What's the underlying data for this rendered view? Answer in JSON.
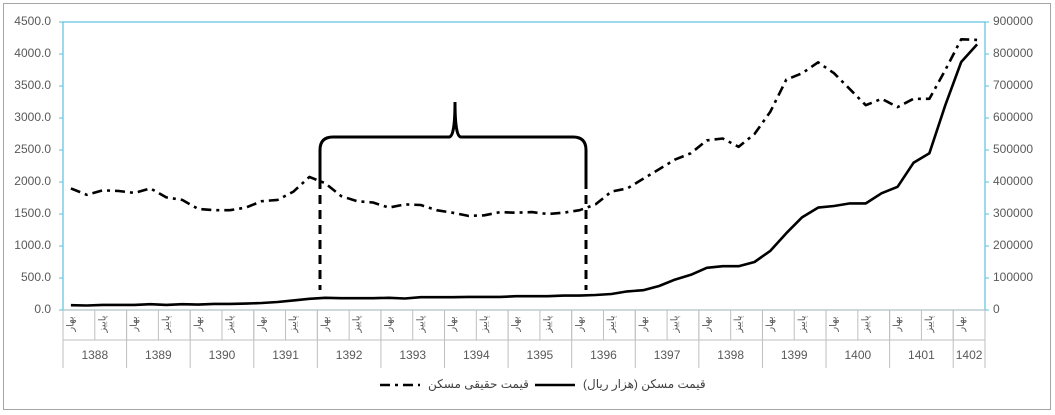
{
  "chart_data": {
    "type": "line",
    "categories": [
      "بهار",
      null,
      "پاییز",
      null,
      "بهار",
      null,
      "پاییز",
      null,
      "بهار",
      null,
      "پاییز",
      null,
      "بهار",
      null,
      "پاییز",
      null,
      "بهار",
      null,
      "پاییز",
      null,
      "بهار",
      null,
      "پاییز",
      null,
      "بهار",
      null,
      "پاییز",
      null,
      "بهار",
      null,
      "پاییز",
      null,
      "بهار",
      null,
      "پاییز",
      null,
      "بهار",
      null,
      "پاییز",
      null,
      "بهار",
      null,
      "پاییز",
      null,
      "بهار",
      null,
      "پاییز",
      null,
      "بهار",
      null,
      "پاییز",
      null,
      "بهار",
      null,
      "پاییز",
      null,
      "بهار",
      null
    ],
    "years": [
      "1388",
      "1389",
      "1390",
      "1391",
      "1392",
      "1393",
      "1394",
      "1395",
      "1396",
      "1397",
      "1398",
      "1399",
      "1400",
      "1401",
      "1402"
    ],
    "series": [
      {
        "name": "قیمت حقیقی مسکن",
        "color": "#000000",
        "dash": true,
        "axis": "y",
        "values": [
          1900,
          1800,
          1870,
          1860,
          1830,
          1900,
          1760,
          1720,
          1580,
          1560,
          1560,
          1600,
          1700,
          1720,
          1850,
          2080,
          1980,
          1780,
          1700,
          1680,
          1600,
          1650,
          1640,
          1560,
          1520,
          1470,
          1480,
          1530,
          1520,
          1530,
          1500,
          1520,
          1560,
          1650,
          1850,
          1900,
          2050,
          2200,
          2350,
          2450,
          2650,
          2680,
          2550,
          2750,
          3100,
          3600,
          3700,
          3870,
          3700,
          3450,
          3200,
          3300,
          3170,
          3300,
          3300,
          3750,
          4230,
          4220
        ]
      },
      {
        "name": "قیمت مسکن (هزار ریال)",
        "color": "#000000",
        "dash": false,
        "axis": "y2",
        "values": [
          15000,
          14000,
          16000,
          16000,
          16000,
          18000,
          16000,
          18000,
          17000,
          19000,
          19000,
          20000,
          22000,
          25000,
          30000,
          35000,
          38000,
          37000,
          37000,
          37000,
          38000,
          36000,
          40000,
          40000,
          40000,
          41000,
          41000,
          41000,
          43000,
          43000,
          43000,
          45000,
          45000,
          47000,
          50000,
          58000,
          62000,
          75000,
          95000,
          110000,
          132000,
          137000,
          137000,
          150000,
          185000,
          240000,
          290000,
          320000,
          325000,
          333000,
          333000,
          365000,
          385000,
          460000,
          490000,
          640000,
          775000,
          830000
        ]
      }
    ],
    "ylim": [
      0,
      4500
    ],
    "yticks": [
      {
        "value": 0,
        "label": "0.0"
      },
      {
        "value": 500,
        "label": "500.0"
      },
      {
        "value": 1000,
        "label": "1000.0"
      },
      {
        "value": 1500,
        "label": "1500.0"
      },
      {
        "value": 2000,
        "label": "2000.0"
      },
      {
        "value": 2500,
        "label": "2500.0"
      },
      {
        "value": 3000,
        "label": "3000.0"
      },
      {
        "value": 3500,
        "label": "3500.0"
      },
      {
        "value": 4000,
        "label": "4000.0"
      },
      {
        "value": 4500,
        "label": "4500.0"
      }
    ],
    "y2lim": [
      0,
      900000
    ],
    "y2ticks": [
      0,
      100000,
      200000,
      300000,
      400000,
      500000,
      600000,
      700000,
      800000,
      900000
    ],
    "grid": false,
    "legend": "bottom"
  }
}
